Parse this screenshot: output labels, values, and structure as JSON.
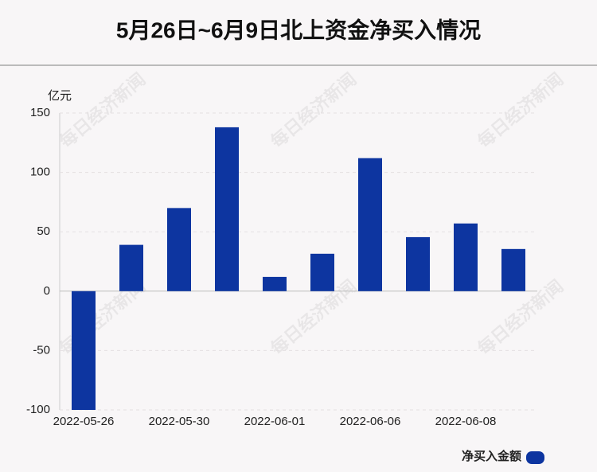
{
  "chart_data": {
    "type": "bar",
    "title": "5月26日~6月9日北上资金净买入情况",
    "y_unit": "亿元",
    "watermark": "每日经济新闻",
    "categories": [
      "2022-05-26",
      null,
      "2022-05-30",
      null,
      "2022-06-01",
      null,
      "2022-06-06",
      null,
      "2022-06-08",
      null
    ],
    "series": [
      {
        "name": "净买入金额",
        "color": "#0d35a0",
        "values": [
          -100,
          39,
          70,
          138,
          12,
          31.5,
          112,
          45.5,
          57,
          35.5
        ]
      }
    ],
    "ylim": [
      -100,
      150
    ],
    "yticks": [
      -100,
      -50,
      0,
      50,
      100,
      150
    ],
    "grid": true,
    "legend": "bottom-right"
  }
}
